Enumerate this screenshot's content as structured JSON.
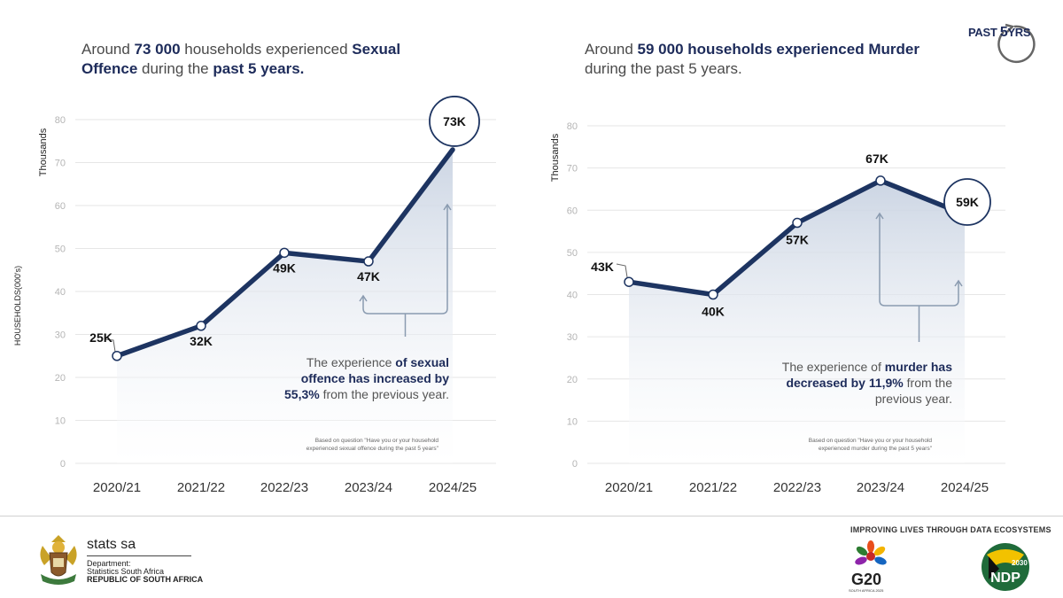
{
  "headlines": {
    "left": {
      "p1": "Around ",
      "b1": "73 000",
      "p2": "  households experienced  ",
      "b2": "Sexual Offence",
      "p3": " during the ",
      "b3": "past 5 years."
    },
    "right": {
      "p1": "Around ",
      "b1": "59 000 households experienced",
      "p2": " ",
      "b2": "Murder",
      "p3": " during the past 5 years.",
      "b3": ""
    }
  },
  "badge": {
    "past": "PAST ",
    "five": "5",
    "yrs": "YRS"
  },
  "chart_data": [
    {
      "type": "line",
      "categories": [
        "2020/21",
        "2021/22",
        "2022/23",
        "2023/24",
        "2024/25"
      ],
      "values": [
        25,
        32,
        49,
        47,
        73
      ],
      "data_labels": [
        "25K",
        "32K",
        "49K",
        "47K",
        "73K"
      ],
      "ylabel": "Thousands",
      "side_label": "HOUSEHOLDS(000's)",
      "ylim": [
        0,
        80
      ],
      "yticks": [
        "0",
        "10",
        "20",
        "30",
        "40",
        "50",
        "60",
        "70",
        "80"
      ],
      "grid": true,
      "line_color": "#1d3461",
      "annotation": {
        "p1": "The experience ",
        "b1": "of sexual",
        "b2": "offence has increased by",
        "b3": "55,3%",
        "p2": " from the previous year."
      },
      "source_note": [
        "Based on question \"Have you or your household",
        "experienced sexual offence during the past 5 years\""
      ]
    },
    {
      "type": "line",
      "categories": [
        "2020/21",
        "2021/22",
        "2022/23",
        "2023/24",
        "2024/25"
      ],
      "values": [
        43,
        40,
        57,
        67,
        59
      ],
      "data_labels": [
        "43K",
        "40K",
        "57K",
        "67K",
        "59K"
      ],
      "ylabel": "Thousands",
      "side_label": "",
      "ylim": [
        0,
        80
      ],
      "yticks": [
        "0",
        "10",
        "20",
        "30",
        "40",
        "50",
        "60",
        "70",
        "80"
      ],
      "grid": true,
      "line_color": "#1d3461",
      "annotation": {
        "p1": "The experience of ",
        "b1": "murder has",
        "b2": "decreased by 11,9%",
        "p2": " from the",
        "p3": "previous year."
      },
      "source_note": [
        "Based on question \"Have you or your household",
        "experienced murder during the past 5 years\""
      ]
    }
  ],
  "footer": {
    "org_name": "stats sa",
    "dept_line1": "Department:",
    "dept_line2": "Statistics South Africa",
    "country": "REPUBLIC OF SOUTH AFRICA",
    "tagline": "IMPROVING LIVES THROUGH DATA ECOSYSTEMS",
    "g20": "G20",
    "g20_sub": "SOUTH AFRICA 2025",
    "ndp": "NDP",
    "ndp_year": "2030"
  },
  "colors": {
    "navy": "#1d2b5a",
    "line": "#1d3461",
    "grid": "#e6e6e6",
    "arrow": "#8a9bb0"
  }
}
